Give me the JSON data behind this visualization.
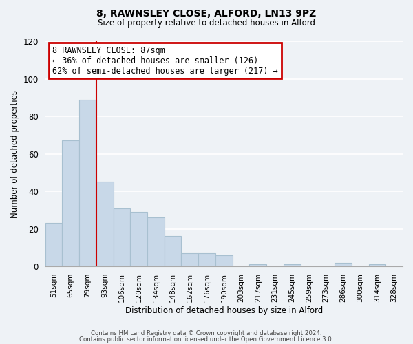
{
  "title": "8, RAWNSLEY CLOSE, ALFORD, LN13 9PZ",
  "subtitle": "Size of property relative to detached houses in Alford",
  "xlabel": "Distribution of detached houses by size in Alford",
  "ylabel": "Number of detached properties",
  "bar_labels": [
    "51sqm",
    "65sqm",
    "79sqm",
    "93sqm",
    "106sqm",
    "120sqm",
    "134sqm",
    "148sqm",
    "162sqm",
    "176sqm",
    "190sqm",
    "203sqm",
    "217sqm",
    "231sqm",
    "245sqm",
    "259sqm",
    "273sqm",
    "286sqm",
    "300sqm",
    "314sqm",
    "328sqm"
  ],
  "bar_values": [
    23,
    67,
    89,
    45,
    31,
    29,
    26,
    16,
    7,
    7,
    6,
    0,
    1,
    0,
    1,
    0,
    0,
    2,
    0,
    1,
    0
  ],
  "bar_color": "#c8d8e8",
  "bar_edge_color": "#a8c0d0",
  "vline_x": 2.5,
  "annotation_title": "8 RAWNSLEY CLOSE: 87sqm",
  "annotation_line1": "← 36% of detached houses are smaller (126)",
  "annotation_line2": "62% of semi-detached houses are larger (217) →",
  "annotation_box_color": "#ffffff",
  "annotation_box_edge": "#cc0000",
  "vline_color": "#cc0000",
  "ylim": [
    0,
    120
  ],
  "yticks": [
    0,
    20,
    40,
    60,
    80,
    100,
    120
  ],
  "footer1": "Contains HM Land Registry data © Crown copyright and database right 2024.",
  "footer2": "Contains public sector information licensed under the Open Government Licence 3.0.",
  "background_color": "#eef2f6",
  "grid_color": "#ffffff"
}
